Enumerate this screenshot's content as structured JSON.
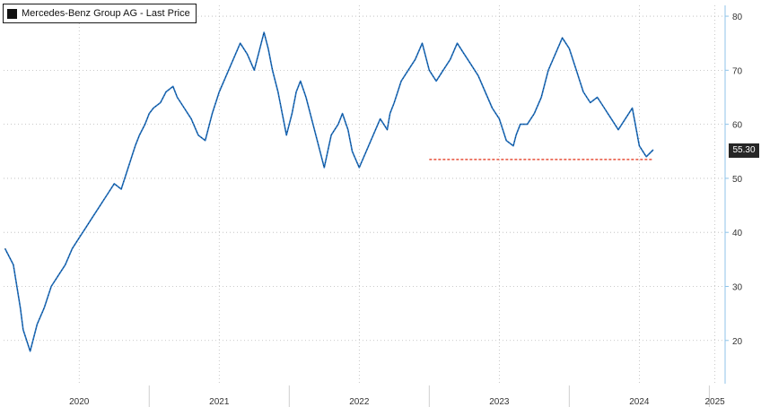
{
  "chart_data": {
    "type": "line",
    "legend": {
      "label": "Mercedes-Benz Group AG - Last Price",
      "position": "top-left"
    },
    "last_value_label": "55.30",
    "y_axis": {
      "side": "right",
      "range": [
        12,
        82
      ],
      "ticks": [
        20,
        30,
        40,
        50,
        60,
        70,
        80
      ]
    },
    "x_axis": {
      "range": [
        2019.96,
        2025.1
      ],
      "year_labels": [
        {
          "label": "2020",
          "value": 2020.5
        },
        {
          "label": "2021",
          "value": 2021.5
        },
        {
          "label": "2022",
          "value": 2022.5
        },
        {
          "label": "2023",
          "value": 2023.5
        },
        {
          "label": "2024",
          "value": 2024.5
        },
        {
          "label": "2025",
          "value": 2025.04
        }
      ],
      "dividers": [
        2021.0,
        2022.0,
        2023.0,
        2024.0,
        2025.0
      ]
    },
    "grid": true,
    "support_line": {
      "value": 53.5,
      "x_start": 2023.0,
      "x_end": 2024.6,
      "color": "#e8503a"
    },
    "series": [
      {
        "color": "#1f6fbf",
        "x": [
          2019.97,
          2020.03,
          2020.08,
          2020.1,
          2020.15,
          2020.2,
          2020.25,
          2020.3,
          2020.35,
          2020.4,
          2020.45,
          2020.5,
          2020.55,
          2020.6,
          2020.65,
          2020.7,
          2020.75,
          2020.8,
          2020.85,
          2020.9,
          2020.93,
          2020.97,
          2021.0,
          2021.03,
          2021.08,
          2021.12,
          2021.17,
          2021.2,
          2021.25,
          2021.3,
          2021.35,
          2021.4,
          2021.45,
          2021.5,
          2021.55,
          2021.6,
          2021.65,
          2021.7,
          2021.75,
          2021.78,
          2021.82,
          2021.85,
          2021.88,
          2021.92,
          2021.95,
          2021.98,
          2022.0,
          2022.02,
          2022.05,
          2022.08,
          2022.12,
          2022.15,
          2022.2,
          2022.25,
          2022.3,
          2022.35,
          2022.38,
          2022.42,
          2022.45,
          2022.5,
          2022.55,
          2022.6,
          2022.65,
          2022.7,
          2022.72,
          2022.75,
          2022.8,
          2022.85,
          2022.9,
          2022.95,
          2023.0,
          2023.05,
          2023.1,
          2023.15,
          2023.2,
          2023.25,
          2023.3,
          2023.35,
          2023.4,
          2023.45,
          2023.5,
          2023.55,
          2023.6,
          2023.62,
          2023.65,
          2023.7,
          2023.75,
          2023.8,
          2023.85,
          2023.9,
          2023.95,
          2024.0,
          2024.05,
          2024.1,
          2024.15,
          2024.2,
          2024.25,
          2024.3,
          2024.35,
          2024.4,
          2024.45,
          2024.5,
          2024.55,
          2024.6
        ],
        "y": [
          37,
          34,
          26,
          22,
          18,
          23,
          26,
          30,
          32,
          34,
          37,
          39,
          41,
          43,
          45,
          47,
          49,
          48,
          52,
          56,
          58,
          60,
          62,
          63,
          64,
          66,
          67,
          65,
          63,
          61,
          58,
          57,
          62,
          66,
          69,
          72,
          75,
          73,
          70,
          73,
          77,
          74,
          70,
          66,
          62,
          58,
          60,
          62,
          66,
          68,
          65,
          62,
          57,
          52,
          58,
          60,
          62,
          59,
          55,
          52,
          55,
          58,
          61,
          59,
          62,
          64,
          68,
          70,
          72,
          75,
          70,
          68,
          70,
          72,
          75,
          73,
          71,
          69,
          66,
          63,
          61,
          57,
          56,
          58,
          60,
          60,
          62,
          65,
          70,
          73,
          76,
          74,
          70,
          66,
          64,
          65,
          63,
          61,
          59,
          61,
          63,
          56,
          54,
          55.3
        ]
      }
    ]
  }
}
